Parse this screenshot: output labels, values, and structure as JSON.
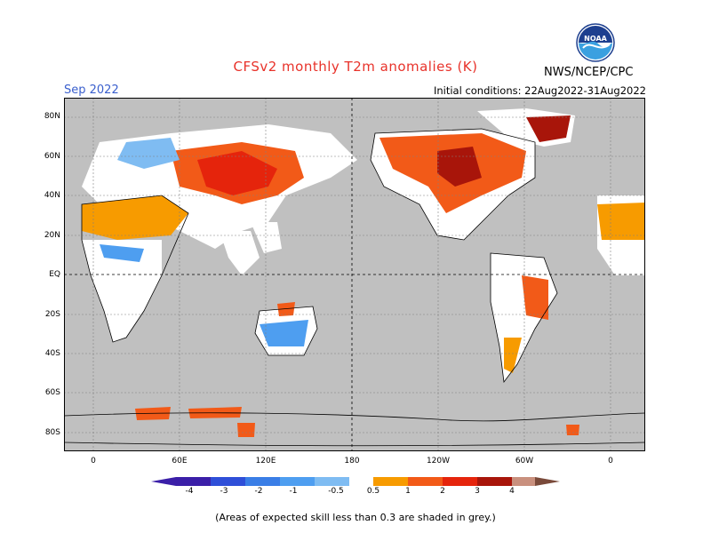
{
  "header": {
    "title": "CFSv2 monthly T2m anomalies (K)",
    "month": "Sep 2022",
    "initial_conditions": "Initial conditions: 22Aug2022-31Aug2022",
    "agency": "NWS/NCEP/CPC",
    "logo_text": "NOAA"
  },
  "map": {
    "lat_labels": [
      "80N",
      "60N",
      "40N",
      "20N",
      "EQ",
      "20S",
      "40S",
      "60S",
      "80S"
    ],
    "lon_labels": [
      "0",
      "60E",
      "120E",
      "180",
      "120W",
      "60W",
      "0"
    ],
    "background_color": "#c0c0c0"
  },
  "colorbar": {
    "labels": [
      "-4",
      "-3",
      "-2",
      "-1",
      "-0.5",
      "0.5",
      "1",
      "2",
      "3",
      "4"
    ],
    "colors": [
      "#3b1fa8",
      "#2f4fd8",
      "#3a7ee6",
      "#4e9ef0",
      "#7fbcf2",
      "#ffffff",
      "#f79b00",
      "#f25a18",
      "#e5240c",
      "#a8150a",
      "#c9907e",
      "#7a4a3a"
    ]
  },
  "footer": {
    "note": "(Areas of expected skill less than 0.3 are shaded in grey.)"
  }
}
